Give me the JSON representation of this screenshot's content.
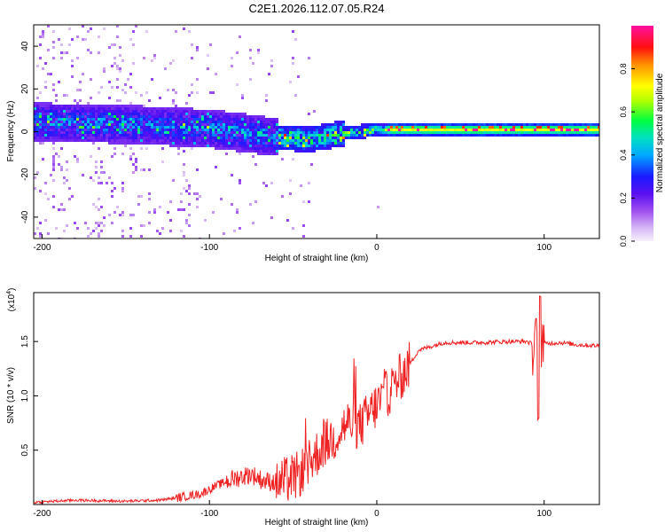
{
  "figure_title": "C2E1.2026.112.07.05.R24",
  "chart_data": [
    {
      "type": "heatmap",
      "title": "C2E1.2026.112.07.05.R24",
      "xlabel": "Height of straight line (km)",
      "ylabel": "Frequency (Hz)",
      "xlim": [
        -205,
        133
      ],
      "ylim": [
        -50,
        50
      ],
      "xticks": [
        -200,
        -100,
        0,
        100
      ],
      "yticks": [
        -40,
        -20,
        0,
        20,
        40
      ],
      "colorbar": {
        "label": "Normalized spectral amplitude",
        "range": [
          0,
          1
        ],
        "ticks": [
          0.0,
          0.2,
          0.4,
          0.6,
          0.8
        ],
        "colors": [
          "#f4eefa",
          "#c9a2ee",
          "#8a2be2",
          "#2020ff",
          "#00bfff",
          "#00e0b0",
          "#00ff40",
          "#bfff00",
          "#ffff00",
          "#ff9900",
          "#ff0000",
          "#ff00aa"
        ]
      },
      "description_band": {
        "center_frequency_hz": [
          {
            "x": -200,
            "f": 5
          },
          {
            "x": -150,
            "f": 4
          },
          {
            "x": -100,
            "f": 2
          },
          {
            "x": -60,
            "f": -2
          },
          {
            "x": -40,
            "f": -3
          },
          {
            "x": -20,
            "f": 0
          },
          {
            "x": 0,
            "f": 1.5
          },
          {
            "x": 133,
            "f": 1.5
          }
        ]
      }
    },
    {
      "type": "line",
      "xlabel": "Height of straight line (km)",
      "ylabel": "SNR (10 * v/v)",
      "scale_label": "(x10",
      "scale_exponent": "4",
      "xlim": [
        -205,
        133
      ],
      "ylim": [
        0,
        1.95
      ],
      "xticks": [
        -200,
        -100,
        0,
        100
      ],
      "yticks": [
        0.5,
        1.0,
        1.5
      ],
      "ytick_labels": [
        "0.5",
        "1.0",
        "1.5"
      ],
      "series": [
        {
          "name": "SNR",
          "color": "#ee2222",
          "x": [
            -205,
            -180,
            -150,
            -130,
            -120,
            -105,
            -95,
            -85,
            -75,
            -68,
            -58,
            -48,
            -40,
            -32,
            -25,
            -18,
            -10,
            -2,
            8,
            18,
            25,
            40,
            60,
            80,
            90,
            95,
            97,
            100,
            110,
            120,
            133
          ],
          "y": [
            0.02,
            0.04,
            0.03,
            0.04,
            0.06,
            0.1,
            0.18,
            0.24,
            0.28,
            0.22,
            0.2,
            0.26,
            0.38,
            0.55,
            0.62,
            0.75,
            0.72,
            0.88,
            1.05,
            1.25,
            1.42,
            1.49,
            1.49,
            1.5,
            1.5,
            1.45,
            1.5,
            1.48,
            1.49,
            1.47,
            1.46
          ]
        }
      ]
    }
  ]
}
